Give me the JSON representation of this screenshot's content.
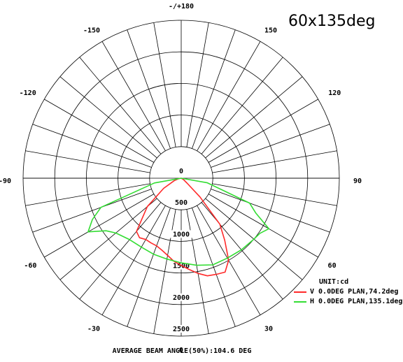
{
  "chart_data": {
    "type": "polar-line",
    "title": "60x135deg",
    "unit_label": "UNIT:cd",
    "footer": "AVERAGE BEAM ANGLE(50%):104.6 DEG",
    "radial_range": [
      0,
      2500
    ],
    "radial_ticks": [
      "0",
      "500",
      "1000",
      "1500",
      "2000",
      "2500"
    ],
    "angle_ticks": [
      "-/+180",
      "150",
      "120",
      "90",
      "60",
      "30",
      "0",
      "-30",
      "-60",
      "-90",
      "-120",
      "-150"
    ],
    "grid": true,
    "legend_position": "bottom-right",
    "series": [
      {
        "name": "V 0.0DEG PLAN,74.2deg",
        "color": "#ff2a2a",
        "points": [
          [
            -90,
            0
          ],
          [
            -80,
            40
          ],
          [
            -70,
            120
          ],
          [
            -60,
            320
          ],
          [
            -50,
            700
          ],
          [
            -40,
            1100
          ],
          [
            -35,
            1150
          ],
          [
            -30,
            1120
          ],
          [
            -25,
            1130
          ],
          [
            -20,
            1140
          ],
          [
            -15,
            1180
          ],
          [
            -10,
            1240
          ],
          [
            -5,
            1320
          ],
          [
            0,
            1380
          ],
          [
            5,
            1450
          ],
          [
            10,
            1530
          ],
          [
            15,
            1600
          ],
          [
            20,
            1620
          ],
          [
            25,
            1640
          ],
          [
            30,
            1500
          ],
          [
            35,
            1200
          ],
          [
            40,
            950
          ],
          [
            45,
            420
          ],
          [
            50,
            120
          ],
          [
            60,
            40
          ],
          [
            90,
            0
          ]
        ]
      },
      {
        "name": "H 0.0DEG PLAN,135.1deg",
        "color": "#33dd33",
        "points": [
          [
            -90,
            0
          ],
          [
            -80,
            430
          ],
          [
            -70,
            1350
          ],
          [
            -65,
            1550
          ],
          [
            -60,
            1700
          ],
          [
            -55,
            1450
          ],
          [
            -50,
            1350
          ],
          [
            -40,
            1270
          ],
          [
            -30,
            1260
          ],
          [
            -20,
            1280
          ],
          [
            -10,
            1300
          ],
          [
            0,
            1340
          ],
          [
            10,
            1400
          ],
          [
            20,
            1460
          ],
          [
            30,
            1460
          ],
          [
            40,
            1480
          ],
          [
            50,
            1500
          ],
          [
            55,
            1520
          ],
          [
            60,
            1600
          ],
          [
            65,
            1300
          ],
          [
            70,
            1150
          ],
          [
            80,
            420
          ],
          [
            90,
            0
          ]
        ]
      }
    ]
  }
}
